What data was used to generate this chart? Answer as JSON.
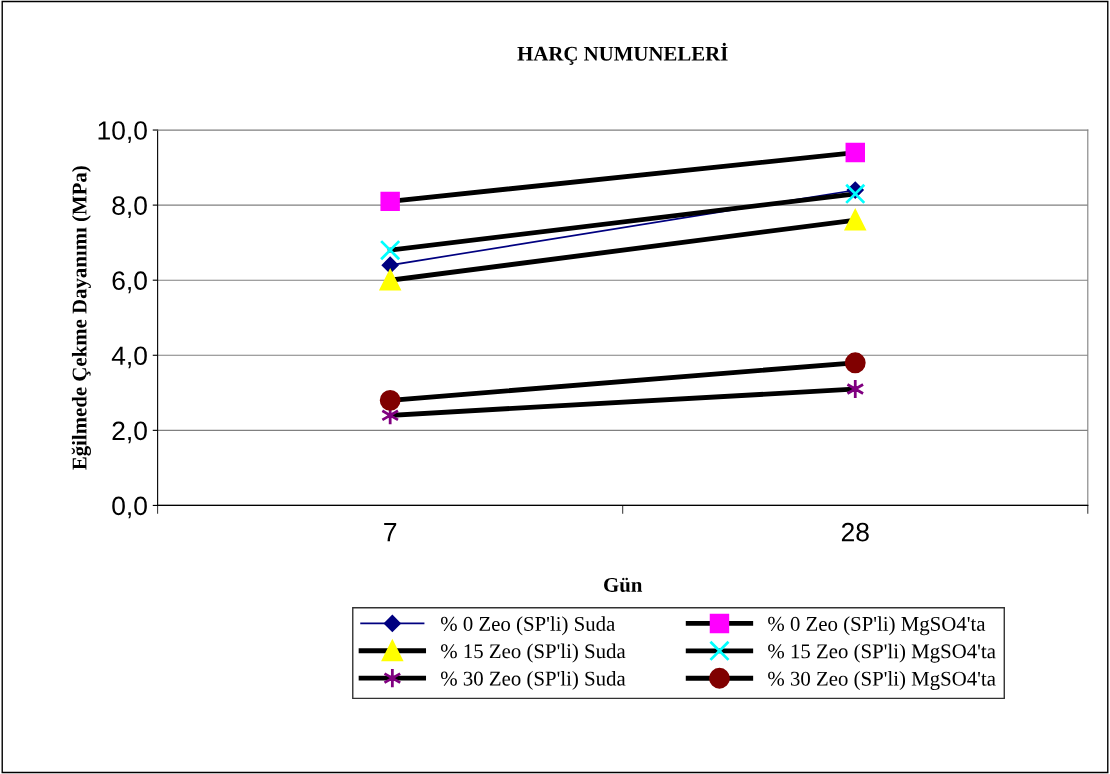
{
  "chart_data": {
    "type": "line",
    "title": "HARÇ NUMUNELERİ",
    "xlabel": "Gün",
    "ylabel": "Eğilmede Çekme Dayanımı (MPa)",
    "categories": [
      "7",
      "28"
    ],
    "series": [
      {
        "name": "% 0 Zeo (SP'li) Suda",
        "color": "#000080",
        "colors": [
          "#000080",
          "#000080"
        ],
        "marker": "diamond",
        "values": [
          6.4,
          8.4
        ]
      },
      {
        "name": "% 0 Zeo (SP'li) MgSO4'ta",
        "color": "#000000",
        "colors": [
          "#ff00ff",
          "#ff00ff"
        ],
        "marker": "square",
        "values": [
          8.1,
          9.4
        ]
      },
      {
        "name": "% 15 Zeo (SP'li) Suda",
        "color": "#000000",
        "colors": [
          "#ffff00",
          "#ffff00"
        ],
        "marker": "triangle",
        "values": [
          6.0,
          7.6
        ]
      },
      {
        "name": "% 15 Zeo (SP'li) MgSO4'ta",
        "color": "#000000",
        "colors": [
          "#00ffff",
          "#00ffff"
        ],
        "marker": "cross",
        "values": [
          6.8,
          8.3
        ]
      },
      {
        "name": "% 30 Zeo (SP'li) Suda",
        "color": "#000000",
        "colors": [
          "#800080",
          "#800080"
        ],
        "marker": "cross",
        "values": [
          2.4,
          3.1
        ]
      },
      {
        "name": "% 30 Zeo (SP'li) MgSO4'ta",
        "color": "#000000",
        "colors": [
          "#800000",
          "#800000"
        ],
        "marker": "circle",
        "values": [
          2.8,
          3.8
        ]
      }
    ],
    "ylim": [
      0,
      10
    ],
    "yticks": [
      {
        "value": 0,
        "label": "0,0"
      },
      {
        "value": 2,
        "label": "2,0"
      },
      {
        "value": 4,
        "label": "4,0"
      },
      {
        "value": 6,
        "label": "6,0"
      },
      {
        "value": 8,
        "label": "8,0"
      },
      {
        "value": 10,
        "label": "10,0"
      }
    ],
    "grid": "y",
    "legend": "bottom"
  }
}
